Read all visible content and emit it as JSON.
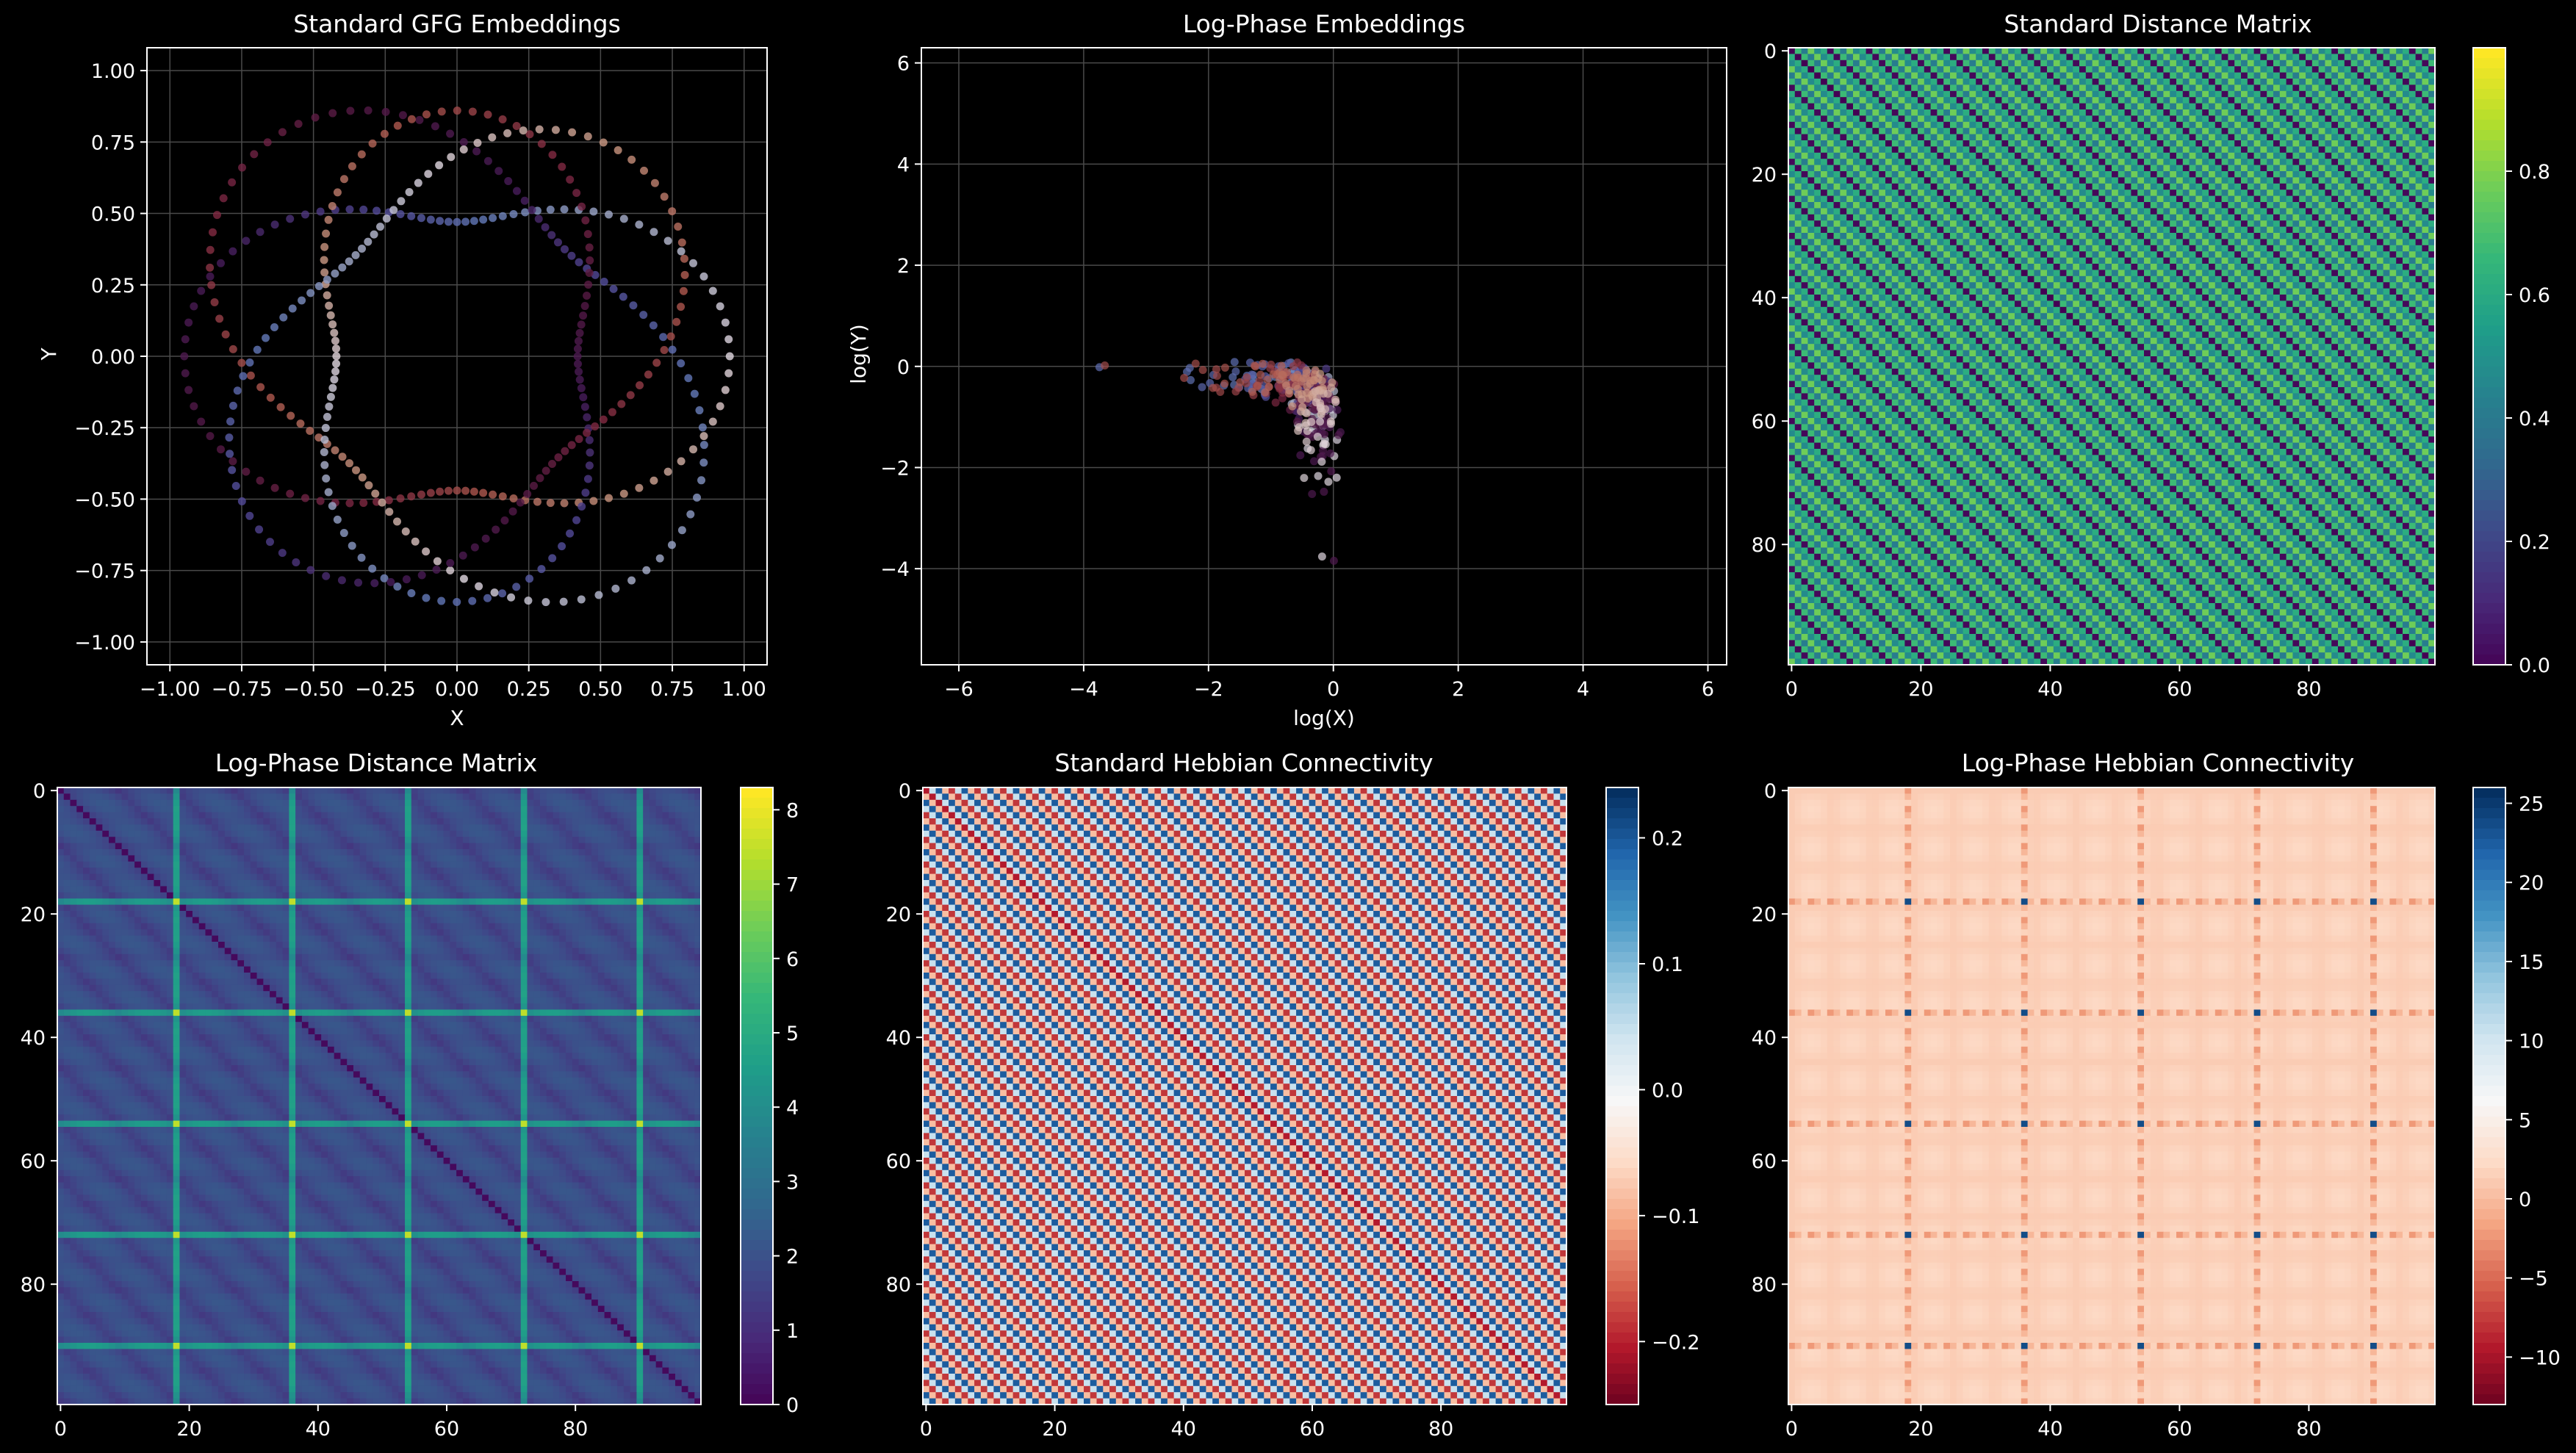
{
  "figure": {
    "background": "#000000",
    "text_color": "#ffffff",
    "grid_color": "#4a4a4a"
  },
  "chart_data": [
    {
      "id": "standard-embeddings",
      "type": "scatter",
      "title": "Standard GFG Embeddings",
      "xlabel": "X",
      "ylabel": "Y",
      "xlim": [
        -1.08,
        1.08
      ],
      "ylim": [
        -1.08,
        1.08
      ],
      "xticks": [
        -1.0,
        -0.75,
        -0.5,
        -0.25,
        0.0,
        0.25,
        0.5,
        0.75,
        1.0
      ],
      "xtick_labels": [
        "−1.00",
        "−0.75",
        "−0.50",
        "−0.25",
        "0.00",
        "0.25",
        "0.50",
        "0.75",
        "1.00"
      ],
      "yticks": [
        1.0,
        0.75,
        0.5,
        0.25,
        0.0,
        -0.25,
        -0.5,
        -0.75,
        -1.0
      ],
      "ytick_labels": [
        "1.00",
        "0.75",
        "0.50",
        "0.25",
        "0.00",
        "−0.25",
        "−0.50",
        "−0.75",
        "−1.00"
      ],
      "grid": true,
      "points": {
        "count": 400,
        "radius_range": [
          0.4,
          1.0
        ],
        "shape": "4-lobed ring of 4 concentric bands",
        "colormap": "twilight"
      }
    },
    {
      "id": "logphase-embeddings",
      "type": "scatter",
      "title": "Log-Phase Embeddings",
      "xlabel": "log(X)",
      "ylabel": "log(Y)",
      "xlim": [
        -6.6,
        6.3
      ],
      "ylim": [
        -5.9,
        6.3
      ],
      "xticks": [
        -6,
        -4,
        -2,
        0,
        2,
        4,
        6
      ],
      "xtick_labels": [
        "−6",
        "−4",
        "−2",
        "0",
        "2",
        "4",
        "6"
      ],
      "yticks": [
        6,
        4,
        2,
        0,
        -2,
        -4
      ],
      "ytick_labels": [
        "6",
        "4",
        "2",
        "0",
        "−2",
        "−4"
      ],
      "grid": true,
      "points": {
        "count": 400,
        "shape": "cross (log transform of ring)",
        "colormap": "twilight"
      }
    },
    {
      "id": "standard-distance",
      "type": "heatmap",
      "title": "Standard Distance Matrix",
      "size": 100,
      "colormap": "viridis",
      "value_range": [
        0.0,
        1.0
      ],
      "pattern": "periodic diagonal stripes, zero on main diagonal",
      "xticks": [
        "0",
        "20",
        "40",
        "60",
        "80"
      ],
      "yticks": [
        "0",
        "20",
        "40",
        "60",
        "80"
      ],
      "colorbar_ticks": [
        "0.0",
        "0.2",
        "0.4",
        "0.6",
        "0.8"
      ],
      "colorbar_values": [
        0.0,
        0.2,
        0.4,
        0.6,
        0.8
      ]
    },
    {
      "id": "logphase-distance",
      "type": "heatmap",
      "title": "Log-Phase Distance Matrix",
      "size": 100,
      "colormap": "viridis",
      "value_range": [
        0.0,
        8.3
      ],
      "pattern": "diagonal banding with bright cross lines at indices 18, 36, 54, 72, 90",
      "xticks": [
        "0",
        "20",
        "40",
        "60",
        "80"
      ],
      "yticks": [
        "0",
        "20",
        "40",
        "60",
        "80"
      ],
      "colorbar_ticks": [
        "0",
        "1",
        "2",
        "3",
        "4",
        "5",
        "6",
        "7",
        "8"
      ],
      "colorbar_values": [
        0,
        1,
        2,
        3,
        4,
        5,
        6,
        7,
        8
      ]
    },
    {
      "id": "standard-hebbian",
      "type": "heatmap",
      "title": "Standard Hebbian Connectivity",
      "size": 100,
      "colormap": "RdBu",
      "value_range": [
        -0.25,
        0.24
      ],
      "pattern": "alternating diagonal stripes, red along main diagonal",
      "xticks": [
        "0",
        "20",
        "40",
        "60",
        "80"
      ],
      "yticks": [
        "0",
        "20",
        "40",
        "60",
        "80"
      ],
      "colorbar_ticks": [
        "0.2",
        "0.1",
        "0.0",
        "−0.1",
        "−0.2"
      ],
      "colorbar_values": [
        0.2,
        0.1,
        0.0,
        -0.1,
        -0.2
      ]
    },
    {
      "id": "logphase-hebbian",
      "type": "heatmap",
      "title": "Log-Phase Hebbian Connectivity",
      "size": 100,
      "colormap": "RdBu",
      "value_range": [
        -13,
        26
      ],
      "pattern": "mostly light salmon with cross lines at indices 18, 36, 54, 72, 90",
      "xticks": [
        "0",
        "20",
        "40",
        "60",
        "80"
      ],
      "yticks": [
        "0",
        "20",
        "40",
        "60",
        "80"
      ],
      "colorbar_ticks": [
        "25",
        "20",
        "15",
        "10",
        "5",
        "0",
        "−5",
        "−10"
      ],
      "colorbar_values": [
        25,
        20,
        15,
        10,
        5,
        0,
        -5,
        -10
      ]
    }
  ]
}
